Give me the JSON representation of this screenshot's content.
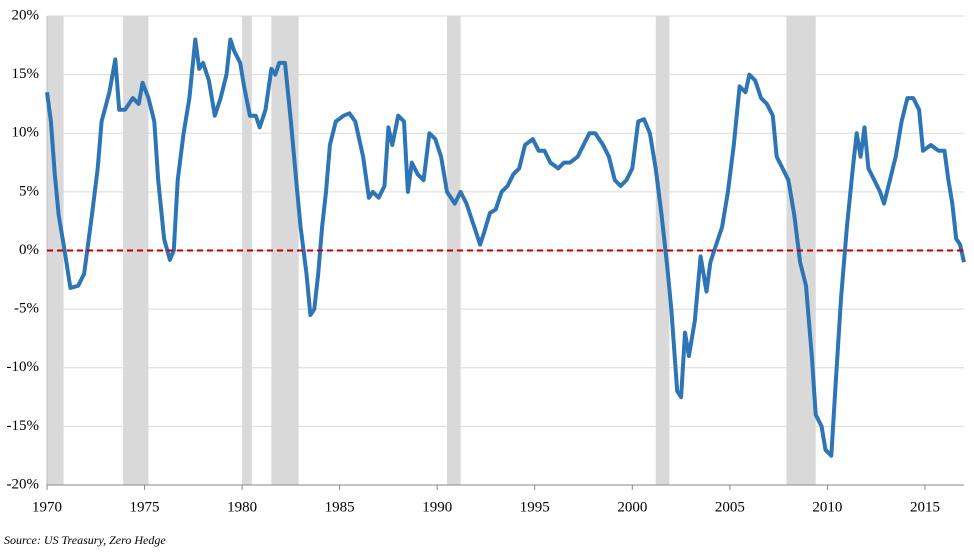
{
  "chart_data": {
    "type": "line",
    "source": "Source: US Treasury, Zero Hedge",
    "x": [
      1970.0,
      1970.2,
      1970.4,
      1970.6,
      1970.9,
      1971.2,
      1971.6,
      1971.9,
      1972.3,
      1972.6,
      1972.8,
      1973.2,
      1973.5,
      1973.7,
      1974.0,
      1974.4,
      1974.7,
      1974.9,
      1975.2,
      1975.5,
      1975.7,
      1976.0,
      1976.3,
      1976.5,
      1976.7,
      1977.0,
      1977.3,
      1977.6,
      1977.8,
      1978.0,
      1978.3,
      1978.6,
      1978.9,
      1979.2,
      1979.4,
      1979.6,
      1979.9,
      1980.1,
      1980.4,
      1980.7,
      1980.9,
      1981.2,
      1981.5,
      1981.7,
      1981.9,
      1982.2,
      1982.5,
      1982.8,
      1983.0,
      1983.3,
      1983.5,
      1983.7,
      1983.9,
      1984.1,
      1984.3,
      1984.5,
      1984.8,
      1985.2,
      1985.5,
      1985.8,
      1986.2,
      1986.5,
      1986.7,
      1987.0,
      1987.3,
      1987.5,
      1987.7,
      1988.0,
      1988.3,
      1988.5,
      1988.7,
      1989.0,
      1989.3,
      1989.6,
      1989.9,
      1990.2,
      1990.5,
      1990.9,
      1991.2,
      1991.5,
      1991.9,
      1992.2,
      1992.4,
      1992.7,
      1993.0,
      1993.3,
      1993.6,
      1993.9,
      1994.2,
      1994.5,
      1994.9,
      1995.2,
      1995.5,
      1995.8,
      1996.2,
      1996.5,
      1996.8,
      1997.2,
      1997.5,
      1997.8,
      1998.1,
      1998.5,
      1998.8,
      1999.1,
      1999.4,
      1999.7,
      2000.0,
      2000.3,
      2000.6,
      2000.9,
      2001.2,
      2001.5,
      2001.8,
      2002.0,
      2002.3,
      2002.5,
      2002.7,
      2002.9,
      2003.2,
      2003.5,
      2003.8,
      2004.0,
      2004.3,
      2004.6,
      2004.9,
      2005.2,
      2005.5,
      2005.8,
      2006.0,
      2006.3,
      2006.6,
      2006.9,
      2007.2,
      2007.4,
      2007.7,
      2008.0,
      2008.3,
      2008.6,
      2008.9,
      2009.2,
      2009.4,
      2009.7,
      2009.9,
      2010.2,
      2010.4,
      2010.7,
      2011.0,
      2011.3,
      2011.5,
      2011.7,
      2011.9,
      2012.1,
      2012.4,
      2012.7,
      2012.9,
      2013.2,
      2013.5,
      2013.8,
      2014.1,
      2014.4,
      2014.7,
      2014.9,
      2015.3,
      2015.7,
      2016.0,
      2016.2,
      2016.4,
      2016.6,
      2016.8,
      2017.0
    ],
    "series": [
      {
        "color": "#2e75b6",
        "values": [
          13.5,
          11,
          6.5,
          3,
          0,
          -3.2,
          -3,
          -2,
          3,
          7,
          11,
          13.5,
          16.3,
          12,
          12,
          13,
          12.5,
          14.3,
          13,
          11,
          6,
          1,
          -0.8,
          0,
          6,
          10,
          13,
          18,
          15.5,
          16,
          14.5,
          11.5,
          13,
          15,
          18,
          17,
          16,
          14,
          11.5,
          11.5,
          10.5,
          12,
          15.5,
          15,
          16,
          16,
          11,
          5.5,
          2,
          -2,
          -5.5,
          -5,
          -2,
          2,
          5,
          9,
          11,
          11.5,
          11.7,
          11,
          8,
          4.5,
          5,
          4.5,
          5.5,
          10.5,
          9,
          11.5,
          11,
          5,
          7.5,
          6.5,
          6,
          10,
          9.5,
          8,
          5,
          4,
          5,
          4,
          2,
          0.5,
          1.5,
          3.2,
          3.5,
          5,
          5.5,
          6.5,
          7,
          9,
          9.5,
          8.5,
          8.5,
          7.5,
          7,
          7.5,
          7.5,
          8,
          9,
          10,
          10,
          9,
          8,
          6,
          5.5,
          6,
          7,
          11,
          11.2,
          10,
          7,
          3,
          -1.5,
          -5,
          -12,
          -12.5,
          -7,
          -9,
          -6,
          -0.5,
          -3.5,
          -1,
          0.5,
          2,
          5,
          9,
          14,
          13.5,
          15,
          14.5,
          13,
          12.5,
          11.5,
          8,
          7,
          6,
          3,
          -1,
          -3,
          -9,
          -14,
          -15,
          -17,
          -17.5,
          -12,
          -4,
          2,
          7,
          10,
          8,
          10.5,
          7,
          6,
          5,
          4,
          6,
          8,
          11,
          13,
          13,
          12,
          8.5,
          9,
          8.5,
          8.5,
          6,
          4,
          1,
          0.5,
          -1
        ]
      }
    ],
    "shaded_ranges": [
      [
        1970.0,
        1970.85
      ],
      [
        1973.9,
        1975.2
      ],
      [
        1980.0,
        1980.5
      ],
      [
        1981.5,
        1982.9
      ],
      [
        1990.5,
        1991.2
      ],
      [
        2001.2,
        2001.9
      ],
      [
        2007.9,
        2009.4
      ]
    ],
    "shade_color": "#d9d9d9",
    "hline": 0,
    "hline_color": "#c00000",
    "xlim": [
      1970,
      2017
    ],
    "xticks": [
      1970,
      1975,
      1980,
      1985,
      1990,
      1995,
      2000,
      2005,
      2010,
      2015
    ],
    "ylim": [
      -20,
      20
    ],
    "yticks": [
      {
        "value": -20,
        "label": "-20%"
      },
      {
        "value": -15,
        "label": "-15%"
      },
      {
        "value": -10,
        "label": "-10%"
      },
      {
        "value": -5,
        "label": "-5%"
      },
      {
        "value": 0,
        "label": "0%"
      },
      {
        "value": 5,
        "label": "5%"
      },
      {
        "value": 10,
        "label": "10%"
      },
      {
        "value": 15,
        "label": "15%"
      },
      {
        "value": 20,
        "label": "20%"
      }
    ],
    "grid": true
  }
}
